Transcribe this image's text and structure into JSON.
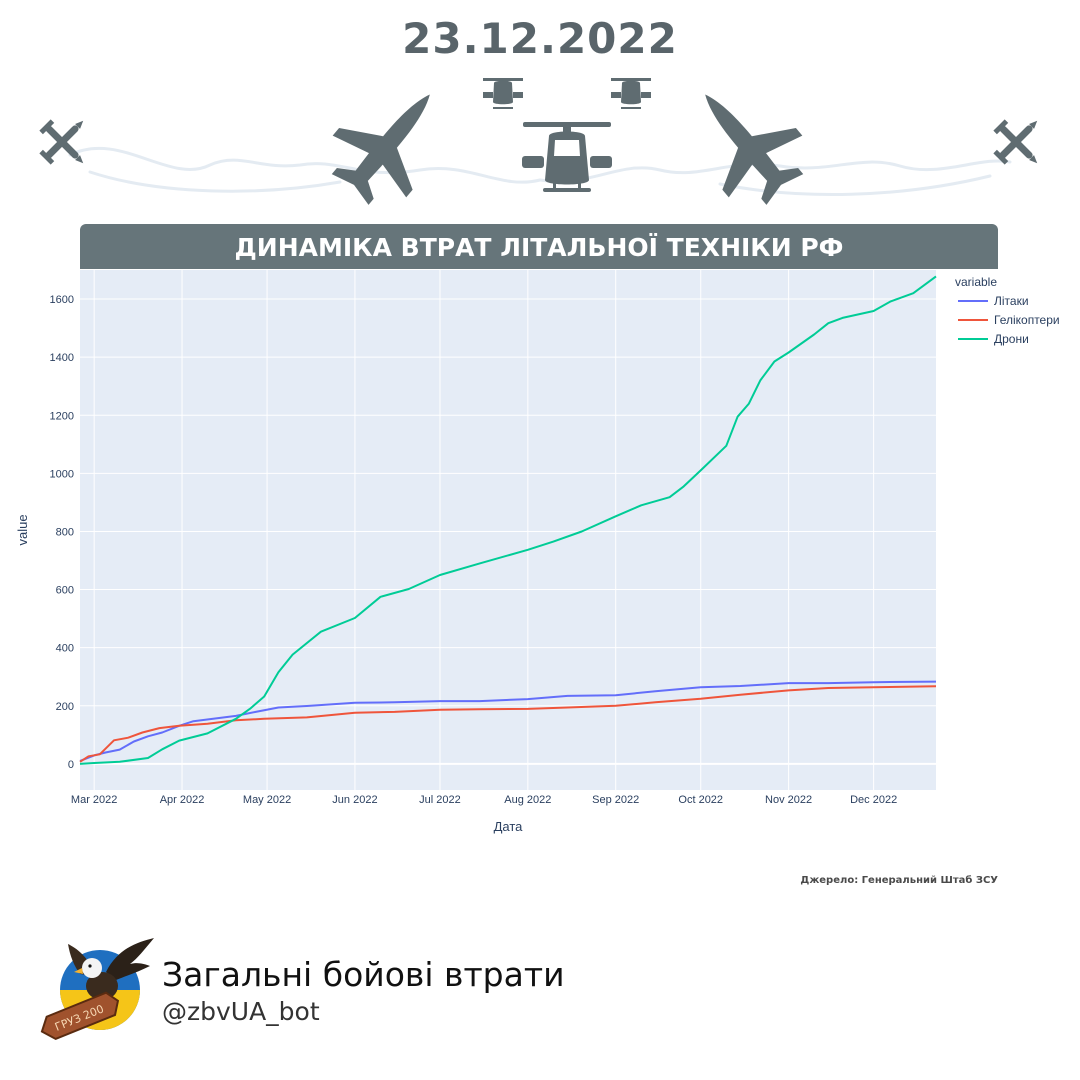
{
  "header": {
    "date": "23.12.2022"
  },
  "icons": [
    "bomb-icon",
    "fighter-jet-icon",
    "helicopter-icon",
    "small-helicopter-icon"
  ],
  "banner": {
    "title": "ДИНАМІКА ВТРАТ ЛІТАЛЬНОЇ ТЕХНІКИ РФ"
  },
  "chart_data": {
    "type": "line",
    "xlabel": "Дата",
    "ylabel": "value",
    "x_range": [
      "2022-02-24",
      "2022-12-23"
    ],
    "ylim": [
      -90,
      1700
    ],
    "x_ticks": [
      {
        "date": "2022-03-01",
        "label": "Mar 2022"
      },
      {
        "date": "2022-04-01",
        "label": "Apr 2022"
      },
      {
        "date": "2022-05-01",
        "label": "May 2022"
      },
      {
        "date": "2022-06-01",
        "label": "Jun 2022"
      },
      {
        "date": "2022-07-01",
        "label": "Jul 2022"
      },
      {
        "date": "2022-08-01",
        "label": "Aug 2022"
      },
      {
        "date": "2022-09-01",
        "label": "Sep 2022"
      },
      {
        "date": "2022-10-01",
        "label": "Oct 2022"
      },
      {
        "date": "2022-11-01",
        "label": "Nov 2022"
      },
      {
        "date": "2022-12-01",
        "label": "Dec 2022"
      }
    ],
    "y_ticks": [
      0,
      200,
      400,
      600,
      800,
      1000,
      1200,
      1400,
      1600
    ],
    "grid": true,
    "legend": {
      "title": "variable",
      "position": "top-right"
    },
    "series": [
      {
        "name": "Літаки",
        "color": "#636efa",
        "points": [
          [
            "2022-02-24",
            10
          ],
          [
            "2022-03-01",
            29
          ],
          [
            "2022-03-05",
            39
          ],
          [
            "2022-03-10",
            49
          ],
          [
            "2022-03-15",
            77
          ],
          [
            "2022-03-20",
            95
          ],
          [
            "2022-03-25",
            108
          ],
          [
            "2022-03-31",
            131
          ],
          [
            "2022-04-05",
            147
          ],
          [
            "2022-04-12",
            155
          ],
          [
            "2022-04-20",
            165
          ],
          [
            "2022-04-27",
            179
          ],
          [
            "2022-05-05",
            194
          ],
          [
            "2022-05-15",
            199
          ],
          [
            "2022-06-01",
            210
          ],
          [
            "2022-06-15",
            212
          ],
          [
            "2022-07-01",
            216
          ],
          [
            "2022-07-15",
            216
          ],
          [
            "2022-08-01",
            223
          ],
          [
            "2022-08-15",
            234
          ],
          [
            "2022-09-01",
            236
          ],
          [
            "2022-09-15",
            250
          ],
          [
            "2022-10-01",
            264
          ],
          [
            "2022-10-15",
            268
          ],
          [
            "2022-11-01",
            278
          ],
          [
            "2022-11-15",
            278
          ],
          [
            "2022-12-01",
            281
          ],
          [
            "2022-12-23",
            283
          ]
        ]
      },
      {
        "name": "Гелікоптери",
        "color": "#ef553b",
        "points": [
          [
            "2022-02-24",
            7
          ],
          [
            "2022-02-27",
            26
          ],
          [
            "2022-03-03",
            33
          ],
          [
            "2022-03-08",
            81
          ],
          [
            "2022-03-13",
            90
          ],
          [
            "2022-03-18",
            108
          ],
          [
            "2022-03-24",
            123
          ],
          [
            "2022-03-31",
            131
          ],
          [
            "2022-04-10",
            138
          ],
          [
            "2022-04-20",
            150
          ],
          [
            "2022-04-30",
            155
          ],
          [
            "2022-05-15",
            160
          ],
          [
            "2022-06-01",
            176
          ],
          [
            "2022-06-15",
            179
          ],
          [
            "2022-07-01",
            186
          ],
          [
            "2022-07-15",
            188
          ],
          [
            "2022-08-01",
            189
          ],
          [
            "2022-08-15",
            194
          ],
          [
            "2022-09-01",
            200
          ],
          [
            "2022-09-15",
            212
          ],
          [
            "2022-10-01",
            224
          ],
          [
            "2022-10-15",
            238
          ],
          [
            "2022-11-01",
            253
          ],
          [
            "2022-11-15",
            261
          ],
          [
            "2022-12-01",
            264
          ],
          [
            "2022-12-23",
            267
          ]
        ]
      },
      {
        "name": "Дрони",
        "color": "#00cc96",
        "points": [
          [
            "2022-02-24",
            0
          ],
          [
            "2022-03-01",
            3
          ],
          [
            "2022-03-10",
            7
          ],
          [
            "2022-03-20",
            20
          ],
          [
            "2022-03-25",
            50
          ],
          [
            "2022-03-31",
            80
          ],
          [
            "2022-04-10",
            105
          ],
          [
            "2022-04-20",
            155
          ],
          [
            "2022-04-25",
            190
          ],
          [
            "2022-04-30",
            232
          ],
          [
            "2022-05-05",
            315
          ],
          [
            "2022-05-10",
            376
          ],
          [
            "2022-05-20",
            455
          ],
          [
            "2022-06-01",
            502
          ],
          [
            "2022-06-10",
            575
          ],
          [
            "2022-06-20",
            602
          ],
          [
            "2022-07-01",
            650
          ],
          [
            "2022-07-15",
            690
          ],
          [
            "2022-08-01",
            737
          ],
          [
            "2022-08-10",
            765
          ],
          [
            "2022-08-20",
            800
          ],
          [
            "2022-09-01",
            852
          ],
          [
            "2022-09-10",
            890
          ],
          [
            "2022-09-20",
            918
          ],
          [
            "2022-09-25",
            955
          ],
          [
            "2022-10-01",
            1010
          ],
          [
            "2022-10-10",
            1095
          ],
          [
            "2022-10-14",
            1195
          ],
          [
            "2022-10-18",
            1240
          ],
          [
            "2022-10-22",
            1320
          ],
          [
            "2022-10-27",
            1385
          ],
          [
            "2022-11-01",
            1416
          ],
          [
            "2022-11-10",
            1478
          ],
          [
            "2022-11-15",
            1517
          ],
          [
            "2022-11-20",
            1535
          ],
          [
            "2022-12-01",
            1559
          ],
          [
            "2022-12-07",
            1592
          ],
          [
            "2022-12-15",
            1620
          ],
          [
            "2022-12-23",
            1678
          ]
        ]
      }
    ]
  },
  "source": "Джерело: Генеральний Штаб ЗСУ",
  "footer": {
    "title": "Загальні бойові втрати",
    "handle": "@zbvUA_bot",
    "logo_text": "ГРУЗ 200"
  },
  "colors": {
    "accent": "#5f6c71",
    "banner": "#66757a",
    "plot_bg": "#e5ecf6",
    "axis_text": "#2a3f5f"
  }
}
